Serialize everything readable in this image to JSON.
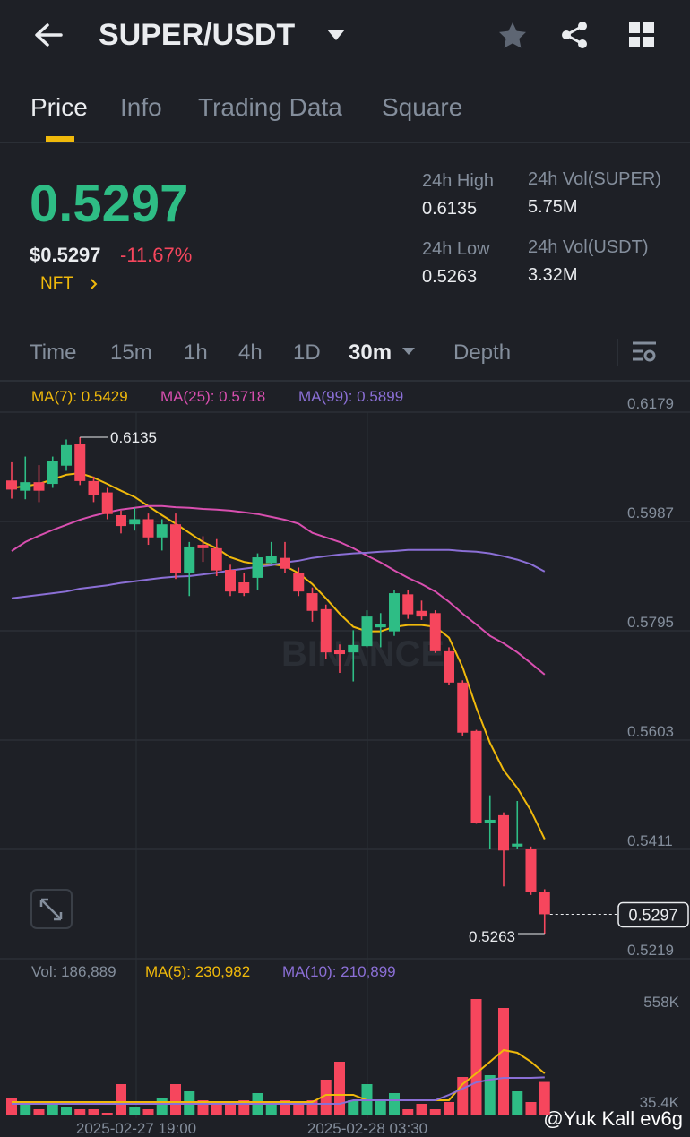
{
  "header": {
    "title": "SUPER/USDT"
  },
  "tabs": [
    "Price",
    "Info",
    "Trading Data",
    "Square"
  ],
  "ticker": {
    "price": "0.5297",
    "usd_price": "$0.5297",
    "change": "-11.67%",
    "tag": "NFT",
    "stats": [
      {
        "label": "24h High",
        "value": "0.6135"
      },
      {
        "label": "24h Vol(SUPER)",
        "value": "5.75M"
      },
      {
        "label": "24h Low",
        "value": "0.5263"
      },
      {
        "label": "24h Vol(USDT)",
        "value": "3.32M"
      }
    ]
  },
  "intervals": [
    "Time",
    "15m",
    "1h",
    "4h",
    "1D",
    "30m",
    "Depth"
  ],
  "ma_legend": [
    "MA(7): 0.5429",
    "MA(25): 0.5718",
    "MA(99): 0.5899"
  ],
  "vol_legend": [
    "Vol: 186,889",
    "MA(5): 230,982",
    "MA(10): 210,899"
  ],
  "time_labels": [
    "2025-02-27 19:00",
    "2025-02-28 03:30"
  ],
  "brand_watermark": "BINANCE",
  "credit": "@Yuk Kall ev6g",
  "chart": {
    "type": "candlestick",
    "ylim": [
      0.5219,
      0.6179
    ],
    "yticks": [
      0.6179,
      0.5987,
      0.5795,
      0.5603,
      0.5411,
      0.5219
    ],
    "max_label": 0.6135,
    "min_label": 0.5263,
    "last_price": 0.5297,
    "up_color": "#2ebd85",
    "down_color": "#f6465d",
    "candles": [
      {
        "open": 0.6059,
        "close": 0.6043,
        "high": 0.6091,
        "low": 0.6027
      },
      {
        "open": 0.6041,
        "close": 0.6056,
        "high": 0.6101,
        "low": 0.6026
      },
      {
        "open": 0.6056,
        "close": 0.6041,
        "high": 0.6086,
        "low": 0.6021
      },
      {
        "open": 0.6053,
        "close": 0.6093,
        "high": 0.6101,
        "low": 0.6046
      },
      {
        "open": 0.6085,
        "close": 0.6121,
        "high": 0.6131,
        "low": 0.6076
      },
      {
        "open": 0.6123,
        "close": 0.6058,
        "high": 0.6135,
        "low": 0.6051
      },
      {
        "open": 0.6058,
        "close": 0.6033,
        "high": 0.6066,
        "low": 0.6021
      },
      {
        "open": 0.6038,
        "close": 0.6,
        "high": 0.6046,
        "low": 0.5991
      },
      {
        "open": 0.5998,
        "close": 0.5979,
        "high": 0.6006,
        "low": 0.5966
      },
      {
        "open": 0.5982,
        "close": 0.5991,
        "high": 0.6011,
        "low": 0.5971
      },
      {
        "open": 0.5991,
        "close": 0.5959,
        "high": 0.6001,
        "low": 0.5946
      },
      {
        "open": 0.5959,
        "close": 0.5982,
        "high": 0.5991,
        "low": 0.5936
      },
      {
        "open": 0.5982,
        "close": 0.5896,
        "high": 0.6001,
        "low": 0.5886
      },
      {
        "open": 0.5896,
        "close": 0.5943,
        "high": 0.5951,
        "low": 0.5856
      },
      {
        "open": 0.5946,
        "close": 0.594,
        "high": 0.5961,
        "low": 0.5916
      },
      {
        "open": 0.594,
        "close": 0.5901,
        "high": 0.5956,
        "low": 0.5891
      },
      {
        "open": 0.5902,
        "close": 0.5864,
        "high": 0.5911,
        "low": 0.5856
      },
      {
        "open": 0.588,
        "close": 0.5861,
        "high": 0.5896,
        "low": 0.5856
      },
      {
        "open": 0.5888,
        "close": 0.5924,
        "high": 0.5931,
        "low": 0.5866
      },
      {
        "open": 0.5914,
        "close": 0.5927,
        "high": 0.5951,
        "low": 0.5911
      },
      {
        "open": 0.5923,
        "close": 0.5904,
        "high": 0.5951,
        "low": 0.5896
      },
      {
        "open": 0.5896,
        "close": 0.5864,
        "high": 0.5906,
        "low": 0.5856
      },
      {
        "open": 0.5861,
        "close": 0.583,
        "high": 0.5871,
        "low": 0.5811
      },
      {
        "open": 0.5833,
        "close": 0.5757,
        "high": 0.5841,
        "low": 0.5746
      },
      {
        "open": 0.5761,
        "close": 0.5754,
        "high": 0.5771,
        "low": 0.5721
      },
      {
        "open": 0.5757,
        "close": 0.577,
        "high": 0.5796,
        "low": 0.5706
      },
      {
        "open": 0.5768,
        "close": 0.582,
        "high": 0.5831,
        "low": 0.5766
      },
      {
        "open": 0.5801,
        "close": 0.5807,
        "high": 0.5826,
        "low": 0.5766
      },
      {
        "open": 0.5794,
        "close": 0.5861,
        "high": 0.5866,
        "low": 0.5786
      },
      {
        "open": 0.5859,
        "close": 0.5824,
        "high": 0.5866,
        "low": 0.5816
      },
      {
        "open": 0.583,
        "close": 0.582,
        "high": 0.5848,
        "low": 0.5814
      },
      {
        "open": 0.5826,
        "close": 0.5759,
        "high": 0.5831,
        "low": 0.5756
      },
      {
        "open": 0.5759,
        "close": 0.5704,
        "high": 0.5766,
        "low": 0.5699
      },
      {
        "open": 0.5704,
        "close": 0.5616,
        "high": 0.5708,
        "low": 0.5611
      },
      {
        "open": 0.5619,
        "close": 0.5458,
        "high": 0.5621,
        "low": 0.5456
      },
      {
        "open": 0.5458,
        "close": 0.5463,
        "high": 0.5506,
        "low": 0.5411
      },
      {
        "open": 0.5471,
        "close": 0.5409,
        "high": 0.5476,
        "low": 0.5346
      },
      {
        "open": 0.5416,
        "close": 0.5421,
        "high": 0.5496,
        "low": 0.5411
      },
      {
        "open": 0.5411,
        "close": 0.5337,
        "high": 0.5416,
        "low": 0.5331
      },
      {
        "open": 0.5337,
        "close": 0.5297,
        "high": 0.5341,
        "low": 0.5263
      }
    ],
    "ma_lines": [
      {
        "name": "MA(7)",
        "color": "#f0b90b",
        "values": [
          0.6046,
          0.6049,
          0.6053,
          0.6061,
          0.6069,
          0.6072,
          0.6064,
          0.6053,
          0.6041,
          0.603,
          0.6014,
          0.5998,
          0.5983,
          0.5967,
          0.5951,
          0.594,
          0.5924,
          0.5916,
          0.5912,
          0.5912,
          0.5909,
          0.5896,
          0.5877,
          0.5852,
          0.5825,
          0.5802,
          0.5794,
          0.5794,
          0.5802,
          0.5805,
          0.5805,
          0.5802,
          0.5783,
          0.5731,
          0.566,
          0.5598,
          0.555,
          0.5519,
          0.5479,
          0.5429
        ]
      },
      {
        "name": "MA(25)",
        "color": "#d94fb0",
        "values": [
          0.5935,
          0.5951,
          0.5962,
          0.5972,
          0.5981,
          0.599,
          0.5997,
          0.6003,
          0.6008,
          0.6011,
          0.6014,
          0.6014,
          0.6012,
          0.6011,
          0.6009,
          0.6008,
          0.6006,
          0.6003,
          0.6,
          0.5995,
          0.599,
          0.5983,
          0.5967,
          0.5959,
          0.5951,
          0.594,
          0.5927,
          0.5915,
          0.5901,
          0.5888,
          0.5877,
          0.5864,
          0.5846,
          0.5825,
          0.5806,
          0.5786,
          0.5773,
          0.5757,
          0.5738,
          0.5718
        ]
      },
      {
        "name": "MA(99)",
        "color": "#8b6fd6",
        "values": [
          0.5852,
          0.5855,
          0.5858,
          0.5861,
          0.5864,
          0.5869,
          0.5872,
          0.5875,
          0.5879,
          0.5882,
          0.5885,
          0.5888,
          0.589,
          0.5891,
          0.5894,
          0.5897,
          0.5901,
          0.5904,
          0.5907,
          0.591,
          0.5915,
          0.5918,
          0.5923,
          0.5926,
          0.5929,
          0.5931,
          0.5932,
          0.5934,
          0.5935,
          0.5937,
          0.5937,
          0.5937,
          0.5937,
          0.5935,
          0.5934,
          0.5931,
          0.5926,
          0.592,
          0.5912,
          0.5899
        ]
      }
    ],
    "vlim": [
      35400,
      558000
    ],
    "vticks": [
      {
        "value": 558000,
        "label": "558K"
      },
      {
        "value": 35400,
        "label": "35.4K"
      }
    ],
    "volumes": [
      105390,
      72728,
      44732,
      72728,
      58730,
      44732,
      44732,
      26068,
      175380,
      58730,
      44732,
      105390,
      175380,
      138052,
      91392,
      72728,
      82060,
      91392,
      128720,
      82060,
      91392,
      72728,
      91392,
      198710,
      292030,
      91392,
      175380,
      91392,
      128720,
      44732,
      72728,
      44732,
      82060,
      212708,
      618650,
      222040,
      571990,
      138052,
      82060,
      186889
    ],
    "vol_ma_lines": [
      {
        "name": "MA(5)",
        "color": "#f0b90b",
        "values": [
          82060,
          82060,
          82060,
          82060,
          82060,
          82060,
          82060,
          82060,
          82060,
          82060,
          82060,
          82060,
          82060,
          82060,
          82060,
          82060,
          82060,
          82060,
          82060,
          82060,
          82060,
          82060,
          82060,
          119388,
          119388,
          119388,
          91392,
          91392,
          91392,
          91392,
          91392,
          91392,
          91392,
          175380,
          231372,
          292030,
          352688,
          338690,
          292030,
          230982
        ]
      },
      {
        "name": "MA(10)",
        "color": "#8b6fd6",
        "values": [
          72728,
          72728,
          72728,
          72728,
          72728,
          72728,
          72728,
          72728,
          72728,
          72728,
          72728,
          72728,
          72728,
          72728,
          72728,
          72728,
          72728,
          72728,
          72728,
          72728,
          72728,
          72728,
          72728,
          72728,
          72728,
          91392,
          91392,
          91392,
          91392,
          91392,
          91392,
          91392,
          119388,
          152050,
          184712,
          198710,
          208042,
          208042,
          208042,
          210899
        ]
      }
    ]
  }
}
